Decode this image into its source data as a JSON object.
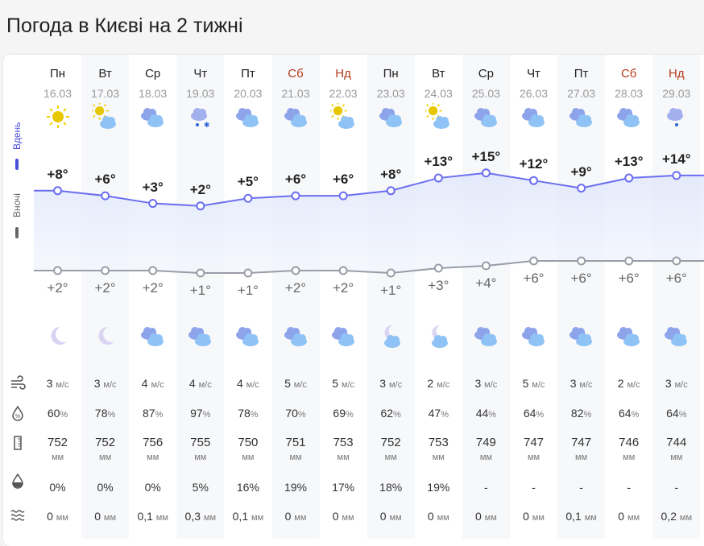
{
  "title": "Погода в Києві на 2 тижні",
  "side": {
    "day_label": "Вдень",
    "night_label": "Вночі",
    "day_color": "#4a4fd8",
    "night_color": "#666666"
  },
  "colors": {
    "day_line": "#6b6ff0",
    "night_line": "#9a9ca8",
    "weekend": "#b23a1b"
  },
  "days": [
    {
      "dow": "Пн",
      "date": "16.03",
      "weekend": false,
      "day_icon": "sun",
      "night_icon": "moon",
      "day_t": "+8°",
      "night_t": "+2°",
      "day": 8,
      "night": 2,
      "wind": "3",
      "hum": "60",
      "press": "752",
      "prob": "0%",
      "prec": "0"
    },
    {
      "dow": "Вт",
      "date": "17.03",
      "weekend": false,
      "day_icon": "sun-cloud",
      "night_icon": "moon",
      "day_t": "+6°",
      "night_t": "+2°",
      "day": 6,
      "night": 2,
      "wind": "3",
      "hum": "78",
      "press": "752",
      "prob": "0%",
      "prec": "0"
    },
    {
      "dow": "Ср",
      "date": "18.03",
      "weekend": false,
      "day_icon": "clouds",
      "night_icon": "clouds",
      "day_t": "+3°",
      "night_t": "+2°",
      "day": 3,
      "night": 2,
      "wind": "4",
      "hum": "87",
      "press": "756",
      "prob": "0%",
      "prec": "0,1"
    },
    {
      "dow": "Чт",
      "date": "19.03",
      "weekend": false,
      "day_icon": "cloud-rain-snow",
      "night_icon": "clouds",
      "day_t": "+2°",
      "night_t": "+1°",
      "day": 2,
      "night": 1,
      "wind": "4",
      "hum": "97",
      "press": "755",
      "prob": "5%",
      "prec": "0,3"
    },
    {
      "dow": "Пт",
      "date": "20.03",
      "weekend": false,
      "day_icon": "clouds",
      "night_icon": "clouds",
      "day_t": "+5°",
      "night_t": "+1°",
      "day": 5,
      "night": 1,
      "wind": "4",
      "hum": "78",
      "press": "750",
      "prob": "16%",
      "prec": "0,1"
    },
    {
      "dow": "Сб",
      "date": "21.03",
      "weekend": true,
      "day_icon": "clouds",
      "night_icon": "clouds",
      "day_t": "+6°",
      "night_t": "+2°",
      "day": 6,
      "night": 2,
      "wind": "5",
      "hum": "70",
      "press": "751",
      "prob": "19%",
      "prec": "0"
    },
    {
      "dow": "Нд",
      "date": "22.03",
      "weekend": true,
      "day_icon": "sun-cloud",
      "night_icon": "clouds",
      "day_t": "+6°",
      "night_t": "+2°",
      "day": 6,
      "night": 2,
      "wind": "5",
      "hum": "69",
      "press": "753",
      "prob": "17%",
      "prec": "0"
    },
    {
      "dow": "Пн",
      "date": "23.03",
      "weekend": false,
      "day_icon": "clouds",
      "night_icon": "moon-cloud",
      "day_t": "+8°",
      "night_t": "+1°",
      "day": 8,
      "night": 1,
      "wind": "3",
      "hum": "62",
      "press": "752",
      "prob": "18%",
      "prec": "0"
    },
    {
      "dow": "Вт",
      "date": "24.03",
      "weekend": false,
      "day_icon": "sun-cloud",
      "night_icon": "moon-cloud",
      "day_t": "+13°",
      "night_t": "+3°",
      "day": 13,
      "night": 3,
      "wind": "2",
      "hum": "47",
      "press": "753",
      "prob": "19%",
      "prec": "0"
    },
    {
      "dow": "Ср",
      "date": "25.03",
      "weekend": false,
      "day_icon": "clouds",
      "night_icon": "clouds",
      "day_t": "+15°",
      "night_t": "+4°",
      "day": 15,
      "night": 4,
      "wind": "3",
      "hum": "44",
      "press": "749",
      "prob": "-",
      "prec": "0"
    },
    {
      "dow": "Чт",
      "date": "26.03",
      "weekend": false,
      "day_icon": "clouds",
      "night_icon": "clouds",
      "day_t": "+12°",
      "night_t": "+6°",
      "day": 12,
      "night": 6,
      "wind": "5",
      "hum": "64",
      "press": "747",
      "prob": "-",
      "prec": "0"
    },
    {
      "dow": "Пт",
      "date": "27.03",
      "weekend": false,
      "day_icon": "clouds",
      "night_icon": "clouds",
      "day_t": "+9°",
      "night_t": "+6°",
      "day": 9,
      "night": 6,
      "wind": "3",
      "hum": "82",
      "press": "747",
      "prob": "-",
      "prec": "0,1"
    },
    {
      "dow": "Сб",
      "date": "28.03",
      "weekend": true,
      "day_icon": "clouds",
      "night_icon": "clouds",
      "day_t": "+13°",
      "night_t": "+6°",
      "day": 13,
      "night": 6,
      "wind": "2",
      "hum": "64",
      "press": "746",
      "prob": "-",
      "prec": "0"
    },
    {
      "dow": "Нд",
      "date": "29.03",
      "weekend": true,
      "day_icon": "cloud-rain",
      "night_icon": "clouds",
      "day_t": "+14°",
      "night_t": "+6°",
      "day": 14,
      "night": 6,
      "wind": "3",
      "hum": "64",
      "press": "744",
      "prob": "-",
      "prec": "0,2"
    }
  ],
  "units": {
    "wind": "м/с",
    "hum": "%",
    "press": "мм",
    "prec": "мм"
  },
  "row_icons": [
    "wind-icon",
    "humidity-icon",
    "pressure-icon",
    "precipitation-probability-icon",
    "precipitation-amount-icon"
  ]
}
